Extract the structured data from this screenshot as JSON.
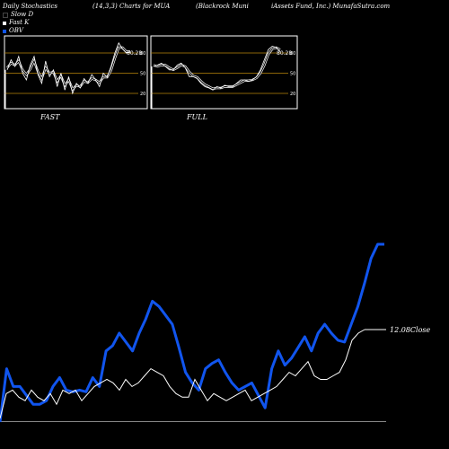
{
  "header": {
    "title": "Daily Stochastics",
    "params": "(14,3,3) Charts for MUA",
    "company": "(Blackrock Muni",
    "company2": "iAssets Fund, Inc.) MunafaSutra.com"
  },
  "legend": [
    {
      "label": "Slow D",
      "color": "#000000"
    },
    {
      "label": "Fast K",
      "color": "#ffffff"
    },
    {
      "label": "OBV",
      "color": "#1155ee"
    }
  ],
  "colors": {
    "obv": "#1155ee",
    "close": "#ffffff",
    "level": "#b8860b",
    "panel_border": "#ffffff"
  },
  "chart_data": [
    {
      "type": "line",
      "title": "FAST",
      "ylim": [
        0,
        100
      ],
      "yticks": [
        80,
        50,
        20
      ],
      "value_label": "80.28",
      "series": [
        {
          "name": "Fast K",
          "values": [
            55,
            70,
            60,
            75,
            50,
            40,
            62,
            75,
            48,
            35,
            68,
            45,
            55,
            30,
            50,
            25,
            45,
            20,
            35,
            28,
            42,
            35,
            48,
            40,
            30,
            50,
            44,
            60,
            80,
            95,
            86,
            80,
            82
          ]
        },
        {
          "name": "Slow D",
          "values": [
            58,
            65,
            62,
            68,
            55,
            48,
            56,
            68,
            52,
            42,
            58,
            50,
            52,
            38,
            46,
            32,
            40,
            26,
            32,
            30,
            38,
            36,
            42,
            40,
            36,
            44,
            44,
            54,
            72,
            88,
            88,
            82,
            82
          ]
        }
      ]
    },
    {
      "type": "line",
      "title": "FULL",
      "ylim": [
        0,
        100
      ],
      "yticks": [
        80,
        50,
        20
      ],
      "value_label": "80.28",
      "series": [
        {
          "name": "Full K",
          "values": [
            60,
            62,
            65,
            60,
            55,
            55,
            62,
            65,
            58,
            45,
            45,
            42,
            35,
            30,
            28,
            25,
            30,
            28,
            32,
            30,
            30,
            35,
            40,
            40,
            38,
            40,
            45,
            55,
            70,
            85,
            90,
            88,
            82
          ]
        },
        {
          "name": "Full D",
          "values": [
            62,
            60,
            62,
            62,
            58,
            55,
            58,
            62,
            60,
            52,
            46,
            44,
            38,
            33,
            30,
            27,
            28,
            28,
            30,
            30,
            30,
            33,
            36,
            39,
            39,
            40,
            43,
            50,
            62,
            78,
            86,
            88,
            85
          ]
        }
      ]
    },
    {
      "type": "line",
      "ylim": [
        0,
        100
      ],
      "close_label": "12.08Close",
      "series": [
        {
          "name": "OBV",
          "values": [
            0,
            30,
            20,
            20,
            15,
            10,
            10,
            12,
            20,
            25,
            18,
            17,
            18,
            17,
            25,
            20,
            40,
            43,
            50,
            45,
            40,
            50,
            58,
            68,
            65,
            60,
            55,
            42,
            28,
            22,
            18,
            30,
            33,
            35,
            28,
            22,
            18,
            20,
            22,
            15,
            8,
            30,
            40,
            32,
            36,
            42,
            48,
            40,
            50,
            55,
            50,
            46,
            45,
            55,
            65,
            78,
            92,
            100,
            100
          ]
        },
        {
          "name": "Close",
          "values": [
            2,
            16,
            18,
            14,
            12,
            18,
            14,
            12,
            16,
            10,
            18,
            16,
            18,
            12,
            16,
            20,
            22,
            24,
            22,
            18,
            24,
            20,
            22,
            26,
            30,
            28,
            26,
            20,
            16,
            14,
            14,
            24,
            18,
            12,
            16,
            14,
            12,
            14,
            16,
            18,
            12,
            14,
            16,
            18,
            20,
            24,
            28,
            26,
            30,
            34,
            26,
            24,
            24,
            26,
            28,
            35,
            46,
            50,
            52
          ]
        }
      ]
    }
  ]
}
